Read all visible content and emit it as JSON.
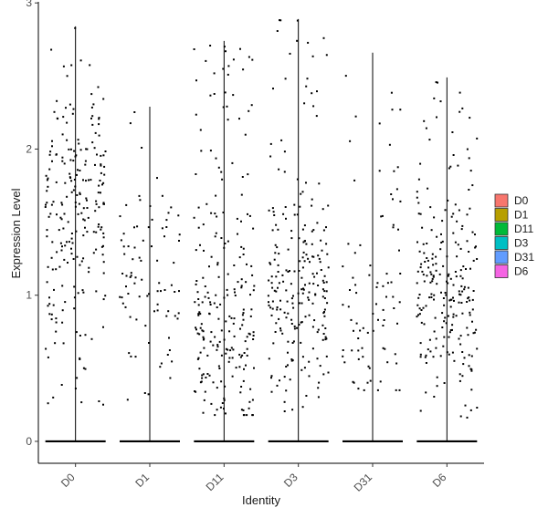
{
  "chart_data": {
    "type": "violin",
    "title": "",
    "xlabel": "Identity",
    "ylabel": "Expression Level",
    "ylim": [
      -0.15,
      3.02
    ],
    "yticks": [
      0,
      1,
      2,
      3
    ],
    "ytick_labels": [
      "0",
      "1",
      "2",
      "3"
    ],
    "grid": false,
    "legend_position": "right",
    "categories": [
      "D0",
      "D1",
      "D11",
      "D3",
      "D31",
      "D6"
    ],
    "series": [
      {
        "name": "D0",
        "color": "#F8766D",
        "max": 2.84,
        "zero_baseline": true,
        "nonzero_range": [
          0.22,
          2.84
        ],
        "nonzero_density": "high",
        "nonzero_center": 1.6
      },
      {
        "name": "D1",
        "color": "#B79F00",
        "max": 2.29,
        "zero_baseline": true,
        "nonzero_range": [
          0.25,
          2.29
        ],
        "nonzero_density": "low",
        "nonzero_center": 1.1
      },
      {
        "name": "D11",
        "color": "#00BA38",
        "max": 2.74,
        "zero_baseline": true,
        "nonzero_range": [
          0.18,
          2.74
        ],
        "nonzero_density": "high",
        "nonzero_center": 0.7
      },
      {
        "name": "D3",
        "color": "#00BFC4",
        "max": 2.89,
        "zero_baseline": true,
        "nonzero_range": [
          0.2,
          2.89
        ],
        "nonzero_density": "high",
        "nonzero_center": 1.0
      },
      {
        "name": "D31",
        "color": "#619CFF",
        "max": 2.66,
        "zero_baseline": true,
        "nonzero_range": [
          0.35,
          2.66
        ],
        "nonzero_density": "low",
        "nonzero_center": 0.9
      },
      {
        "name": "D6",
        "color": "#F564E3",
        "max": 2.49,
        "zero_baseline": true,
        "nonzero_range": [
          0.15,
          2.49
        ],
        "nonzero_density": "high",
        "nonzero_center": 1.0
      }
    ]
  }
}
